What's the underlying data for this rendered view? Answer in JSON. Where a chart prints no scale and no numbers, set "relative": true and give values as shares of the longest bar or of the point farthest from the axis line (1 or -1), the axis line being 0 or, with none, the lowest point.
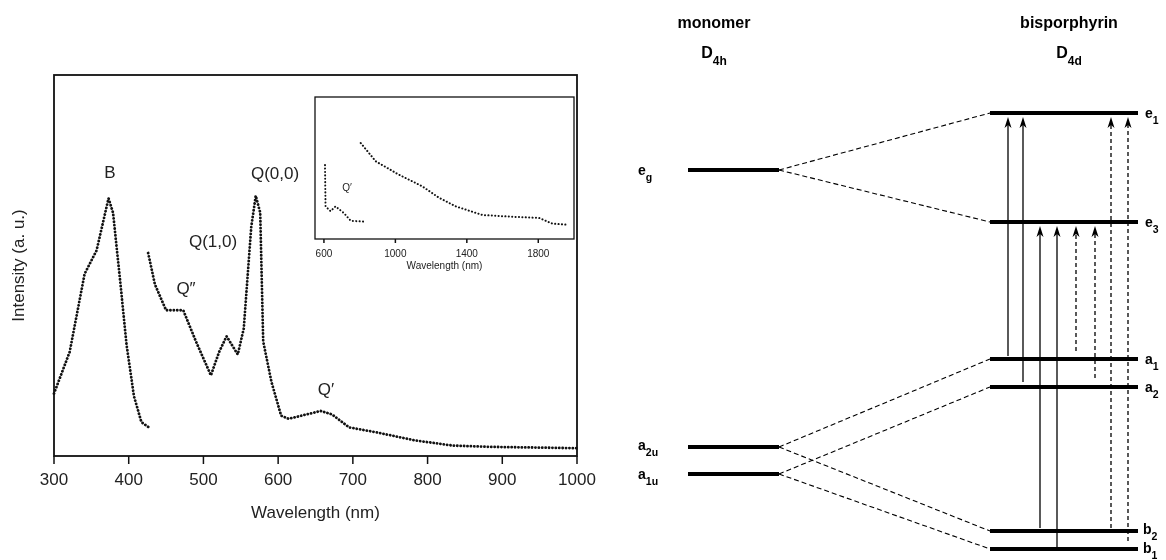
{
  "chart_data": [
    {
      "type": "line",
      "xlabel": "Wavelength (nm)",
      "ylabel": "Intensity (a. u.)",
      "relative": true,
      "line_style": "dotted",
      "xlim": [
        300,
        1000
      ],
      "xticks": [
        300,
        400,
        500,
        600,
        700,
        800,
        900,
        1000
      ],
      "series": [
        {
          "color": "#111111",
          "x": [
            300,
            321,
            341,
            357,
            373,
            379,
            389,
            397,
            407,
            417,
            427
          ],
          "values": [
            0.24,
            0.4,
            0.7,
            0.79,
            0.99,
            0.935,
            0.66,
            0.43,
            0.23,
            0.13,
            0.11
          ]
        },
        {
          "color": "#111111",
          "x": [
            426,
            435,
            450,
            473,
            490,
            510,
            521,
            531,
            546,
            554,
            564,
            570,
            576,
            580,
            591,
            604,
            614,
            657,
            672,
            695,
            733,
            783,
            834,
            884,
            1000
          ],
          "values": [
            0.78,
            0.66,
            0.56,
            0.56,
            0.44,
            0.31,
            0.4,
            0.46,
            0.39,
            0.49,
            0.88,
            1.0,
            0.935,
            0.44,
            0.285,
            0.155,
            0.143,
            0.173,
            0.16,
            0.11,
            0.09,
            0.06,
            0.04,
            0.035,
            0.03
          ]
        }
      ],
      "annotations": [
        "B",
        "Q″",
        "Q(1,0)",
        "Q(0,0)",
        "Q′"
      ]
    },
    {
      "type": "line",
      "xlabel": "Wavelength (nm)",
      "relative": true,
      "line_style": "dotted",
      "xlim": [
        550,
        2000
      ],
      "xticks": [
        600,
        1000,
        1400,
        1800
      ],
      "series": [
        {
          "color": "#111111",
          "x": [
            606,
            609,
            637,
            665,
            712,
            750,
            833
          ],
          "values": [
            0.77,
            0.34,
            0.29,
            0.34,
            0.27,
            0.19,
            0.18
          ]
        },
        {
          "color": "#111111",
          "x": [
            806,
            890,
            1020,
            1150,
            1244,
            1338,
            1487,
            1674,
            1804,
            1879,
            1953
          ],
          "values": [
            1.0,
            0.81,
            0.67,
            0.55,
            0.43,
            0.34,
            0.25,
            0.23,
            0.22,
            0.16,
            0.15
          ]
        }
      ],
      "annotations": [
        "Q′"
      ]
    },
    {
      "type": "other",
      "annotations": [
        "monomer",
        "D$_{4h}$",
        "bisporphyrin",
        "D$_{4d}$",
        "e$_{g}$",
        "a$_{2u}$",
        "a$_{1u}$",
        "e$_{1}$",
        "e$_{3}$",
        "a$_{1}$",
        "a$_{2}$",
        "b$_{2}$",
        "b$_{1}$"
      ]
    }
  ]
}
